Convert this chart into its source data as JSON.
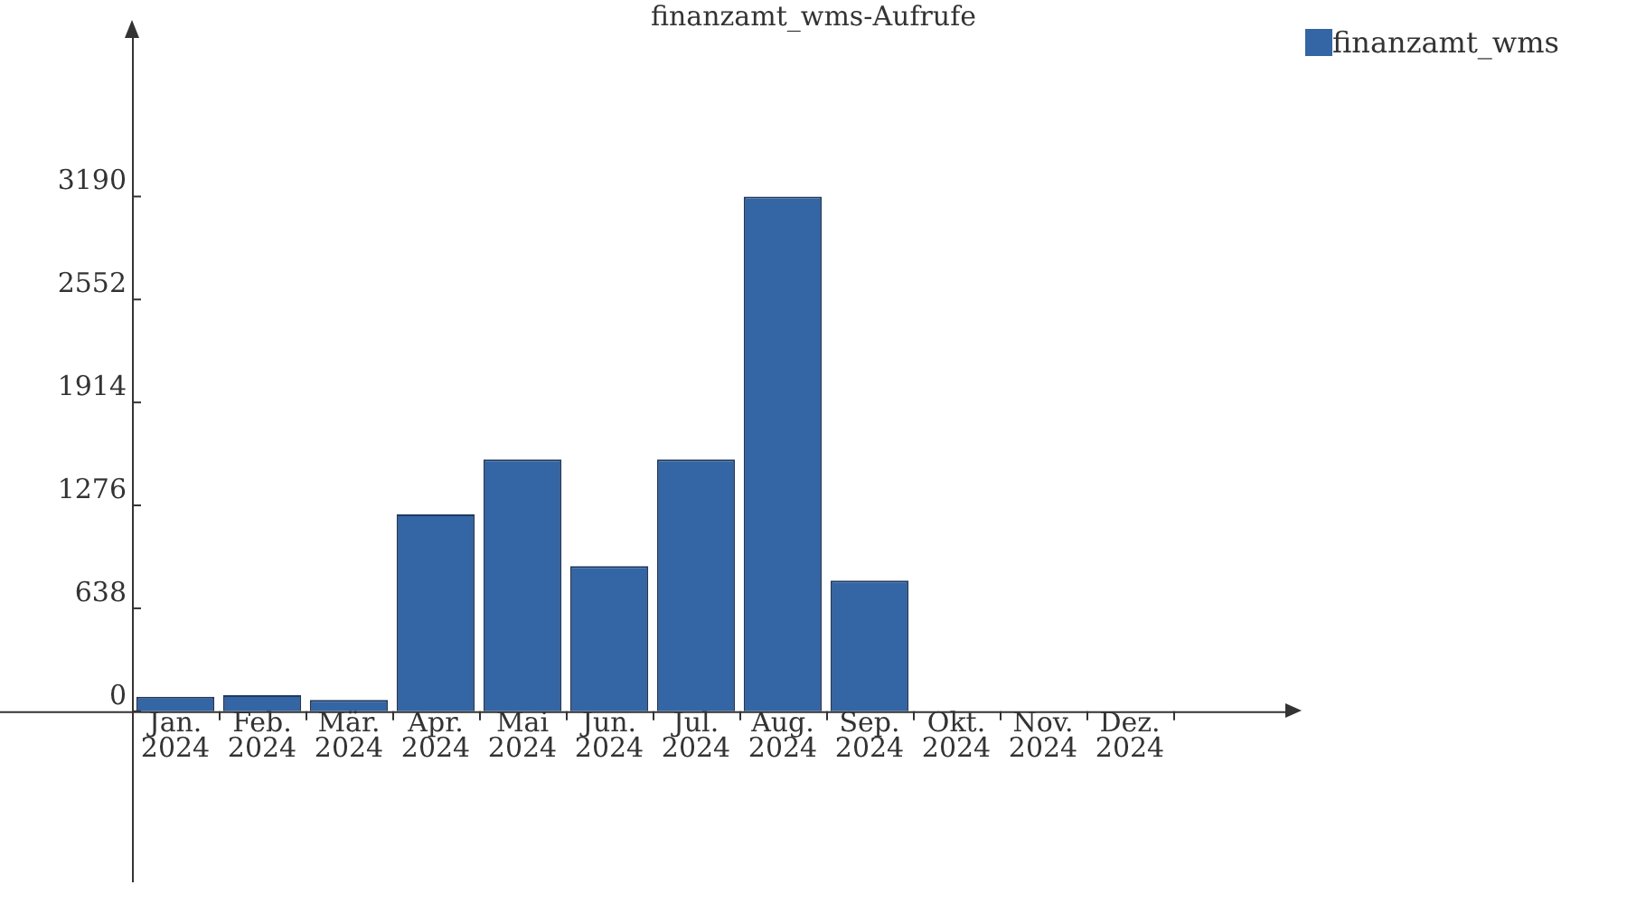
{
  "chart_data": {
    "type": "bar",
    "title": "finanzamt_wms-Aufrufe",
    "categories": [
      "Jan. 2024",
      "Feb. 2024",
      "Mär. 2024",
      "Apr. 2024",
      "Mai 2024",
      "Jun. 2024",
      "Jul. 2024",
      "Aug. 2024",
      "Sep. 2024",
      "Okt. 2024",
      "Nov. 2024",
      "Dez. 2024"
    ],
    "series": [
      {
        "name": "finanzamt_wms",
        "color": "#3465a4",
        "values": [
          90,
          100,
          70,
          1220,
          1560,
          900,
          1560,
          3190,
          810,
          0,
          0,
          0
        ]
      }
    ],
    "ylim": [
      -1060,
      4240
    ],
    "yticks": [
      0,
      638,
      1276,
      1914,
      2552,
      3190
    ],
    "grid": false,
    "legend": "top right"
  }
}
